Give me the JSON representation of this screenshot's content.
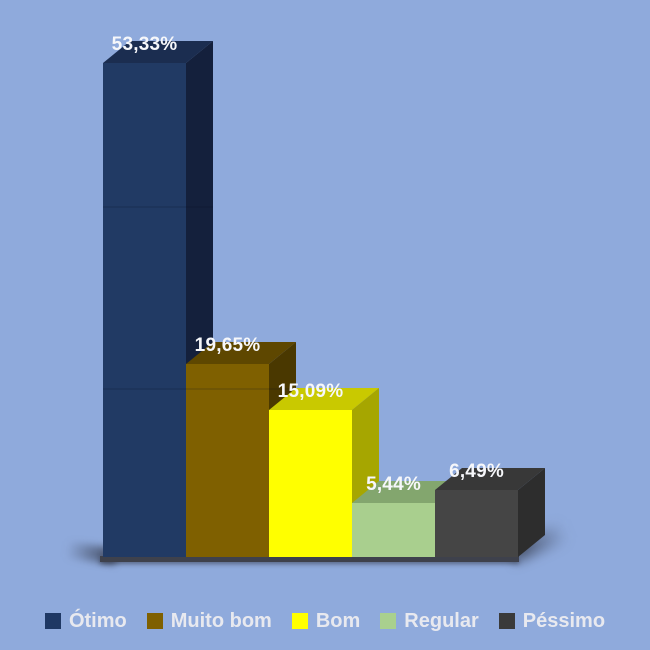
{
  "chart_data": {
    "type": "bar",
    "style": "3d-column",
    "title": "",
    "xlabel": "",
    "ylabel": "",
    "unit": "%",
    "categories": [
      "Ótimo",
      "Muito bom",
      "Bom",
      "Regular",
      "Péssimo"
    ],
    "values": [
      53.33,
      19.65,
      15.09,
      5.44,
      6.49
    ],
    "value_labels": [
      "53,33%",
      "19,65%",
      "15,09%",
      "5,44%",
      "6,49%"
    ],
    "legend_position": "bottom",
    "grid": "faint-horizontal",
    "colors": {
      "background": "#8FAADC",
      "value_label_text": "#F6F7FA",
      "legend_text": "#E8E9EF",
      "floor": "#3E414C"
    },
    "bars": [
      {
        "slug": "otimo",
        "category": "Ótimo",
        "value": 53.33,
        "label": "53,33%",
        "front": "#213A64",
        "top": "#1B2D50",
        "side": "#14203C",
        "swatch": "#1F3864"
      },
      {
        "slug": "muito-bom",
        "category": "Muito bom",
        "value": 19.65,
        "label": "19,65%",
        "front": "#7F6000",
        "top": "#5E4700",
        "side": "#4A3800",
        "swatch": "#7F6000"
      },
      {
        "slug": "bom",
        "category": "Bom",
        "value": 15.09,
        "label": "15,09%",
        "front": "#FFFF00",
        "top": "#C9C900",
        "side": "#A6A600",
        "swatch": "#FFFF00"
      },
      {
        "slug": "regular",
        "category": "Regular",
        "value": 5.44,
        "label": "5,44%",
        "front": "#A9CF8E",
        "top": "#83A66E",
        "side": "#7A9C66",
        "swatch": "#A9D08E"
      },
      {
        "slug": "pessimo",
        "category": "Péssimo",
        "value": 6.49,
        "label": "6,49%",
        "front": "#454545",
        "top": "#383838",
        "side": "#2D2D2D",
        "swatch": "#3A3A3A"
      }
    ]
  }
}
